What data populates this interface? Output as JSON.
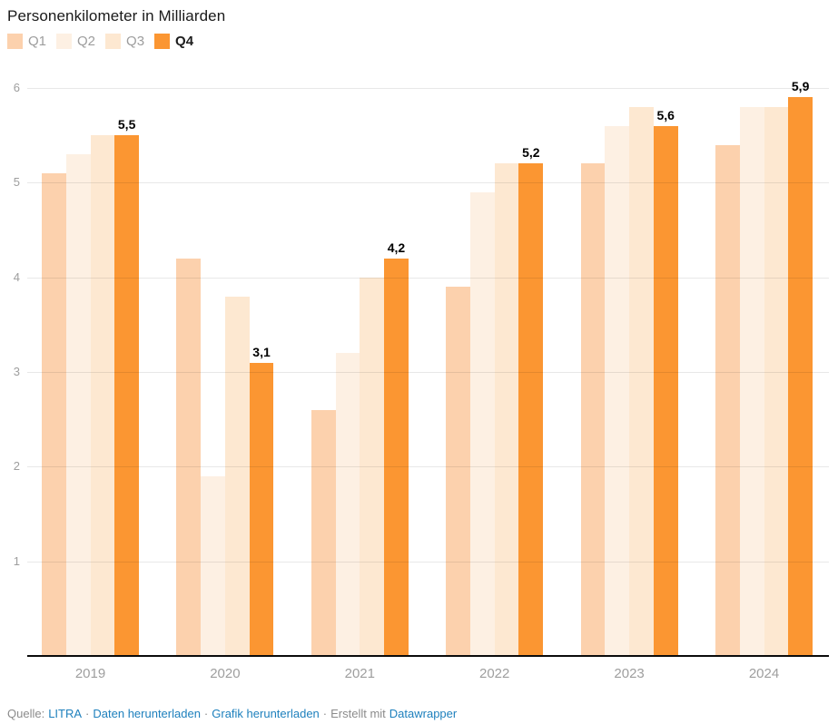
{
  "title": "Personenkilometer in Milliarden",
  "legend": {
    "items": [
      {
        "label": "Q1",
        "color": "#fcd1ad",
        "label_color": "#9d9d9d",
        "bold": false
      },
      {
        "label": "Q2",
        "color": "#fdf0e3",
        "label_color": "#9d9d9d",
        "bold": false
      },
      {
        "label": "Q3",
        "color": "#fde8d1",
        "label_color": "#9d9d9d",
        "bold": false
      },
      {
        "label": "Q4",
        "color": "#fb9632",
        "label_color": "#1d1d1d",
        "bold": true
      }
    ]
  },
  "chart_data": {
    "type": "bar",
    "title": "Personenkilometer in Milliarden",
    "categories": [
      "2019",
      "2020",
      "2021",
      "2022",
      "2023",
      "2024"
    ],
    "series": [
      {
        "name": "Q1",
        "color": "#fcd1ad",
        "values": [
          5.1,
          4.2,
          2.6,
          3.9,
          5.2,
          5.4
        ]
      },
      {
        "name": "Q2",
        "color": "#fdf0e3",
        "values": [
          5.3,
          1.9,
          3.2,
          4.9,
          5.6,
          5.8
        ]
      },
      {
        "name": "Q3",
        "color": "#fde8d1",
        "values": [
          5.5,
          3.8,
          4.0,
          5.2,
          5.8,
          5.8
        ]
      },
      {
        "name": "Q4",
        "color": "#fb9632",
        "values": [
          5.5,
          3.1,
          4.2,
          5.2,
          5.6,
          5.9
        ]
      }
    ],
    "value_labels": {
      "series": "Q4",
      "texts": [
        "5,5",
        "3,1",
        "4,2",
        "5,2",
        "5,6",
        "5,9"
      ]
    },
    "ylim": [
      0,
      6
    ],
    "yticks": [
      1,
      2,
      3,
      4,
      5,
      6
    ],
    "grid": "horizontal",
    "legend_position": "top-left"
  },
  "footer": {
    "source_label": "Quelle:",
    "source_name": "LITRA",
    "separator": "·",
    "download_data_label": "Daten herunterladen",
    "download_image_label": "Grafik herunterladen",
    "created_with_label": "Erstellt mit",
    "creator_name": "Datawrapper"
  },
  "colors": {
    "accent_orange": "#fb9632",
    "link_blue": "#1e80bd",
    "axis_gray": "#9e9e9e",
    "footer_gray": "#8b8b8b",
    "title_dark": "#1a1a1a"
  }
}
